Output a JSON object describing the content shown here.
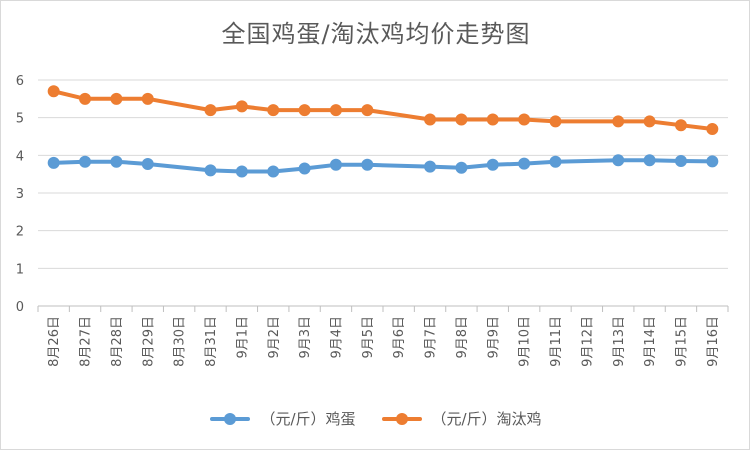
{
  "chart_data": {
    "type": "line",
    "title": "全国鸡蛋/淘汰鸡均价走势图",
    "categories": [
      "8月26日",
      "8月27日",
      "8月28日",
      "8月29日",
      "8月30日",
      "8月31日",
      "9月1日",
      "9月2日",
      "9月3日",
      "9月4日",
      "9月5日",
      "9月6日",
      "9月7日",
      "9月8日",
      "9月9日",
      "9月10日",
      "9月11日",
      "9月12日",
      "9月13日",
      "9月14日",
      "9月15日",
      "9月16日"
    ],
    "series": [
      {
        "name": "（元/斤）鸡蛋",
        "color": "#5b9bd5",
        "values": [
          3.8,
          3.83,
          3.83,
          3.77,
          null,
          3.6,
          3.57,
          3.57,
          3.65,
          3.75,
          3.75,
          null,
          3.7,
          3.67,
          3.75,
          3.78,
          3.83,
          null,
          3.87,
          3.87,
          3.85,
          3.84
        ]
      },
      {
        "name": "（元/斤）淘汰鸡",
        "color": "#ed7d31",
        "values": [
          5.7,
          5.5,
          5.5,
          5.5,
          null,
          5.2,
          5.3,
          5.2,
          5.2,
          5.2,
          5.2,
          null,
          4.95,
          4.95,
          4.95,
          4.95,
          4.9,
          null,
          4.9,
          4.9,
          4.8,
          4.7
        ]
      }
    ],
    "ylim": [
      0,
      6
    ],
    "yticks": [
      "0",
      "1",
      "2",
      "3",
      "4",
      "5",
      "6"
    ],
    "grid": true,
    "legend_position": "bottom"
  }
}
